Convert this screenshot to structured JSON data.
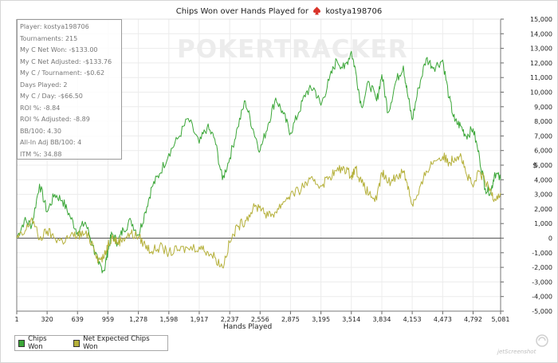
{
  "title": "Chips Won over Hands Played for",
  "player_name": "kostya198706",
  "icons": {
    "player": "poker-spade-icon",
    "corner": "jetscreenshot-logo-icon"
  },
  "stats": [
    "Player: kostya198706",
    "Tournaments: 215",
    "My C Net Won: -$133.00",
    "My C Net Adjusted: -$133.76",
    "My C / Tournament: -$0.62",
    "Days Played: 2",
    "My C / Day: -$66.50",
    "ROI %: -8.84",
    "ROI % Adjusted: -8.89",
    "BB/100: 4.30",
    "All-In Adj BB/100: 4",
    "ITM %: 34.88"
  ],
  "watermark": "POKERTRACKER",
  "corner_text": "jetScreenshot",
  "colors": {
    "chips_won": "#3aa637",
    "net_expected": "#b5b03a",
    "grid": "#ececec",
    "zero_line": "#555555"
  },
  "chart_data": {
    "type": "line",
    "title": "Chips Won over Hands Played for kostya198706",
    "xlabel": "Hands Played",
    "ylabel": "$",
    "xlim": [
      1,
      5081
    ],
    "ylim": [
      -5000,
      15000
    ],
    "x_ticks": [
      1,
      320,
      639,
      959,
      1278,
      1598,
      1917,
      2237,
      2556,
      2875,
      3195,
      3514,
      3834,
      4153,
      4473,
      4792,
      5081
    ],
    "x_tick_labels": [
      "1",
      "320",
      "639",
      "959",
      "1,278",
      "1,598",
      "1,917",
      "2,237",
      "2,556",
      "2,875",
      "3,195",
      "3,514",
      "3,834",
      "4,153",
      "4,473",
      "4,792",
      "5,081"
    ],
    "y_ticks": [
      -5000,
      -4000,
      -3000,
      -2000,
      -1000,
      0,
      1000,
      2000,
      3000,
      4000,
      5000,
      6000,
      7000,
      8000,
      9000,
      10000,
      11000,
      12000,
      13000,
      14000,
      15000
    ],
    "y_tick_labels": [
      "-5,000",
      "-4,000",
      "-3,000",
      "-2,000",
      "-1,000",
      "0",
      "1,000",
      "2,000",
      "3,000",
      "4,000",
      "5,000",
      "6,000",
      "7,000",
      "8,000",
      "9,000",
      "10,000",
      "11,000",
      "12,000",
      "13,000",
      "14,000",
      "15,000"
    ],
    "legend": "bottom-left",
    "series": [
      {
        "name": "Chips Won",
        "x": [
          1,
          80,
          160,
          240,
          320,
          400,
          480,
          560,
          640,
          720,
          800,
          860,
          920,
          959,
          1000,
          1060,
          1120,
          1200,
          1278,
          1350,
          1420,
          1500,
          1598,
          1700,
          1800,
          1917,
          2000,
          2080,
          2160,
          2237,
          2320,
          2400,
          2480,
          2556,
          2640,
          2720,
          2800,
          2875,
          2960,
          3040,
          3120,
          3195,
          3280,
          3360,
          3440,
          3514,
          3560,
          3620,
          3700,
          3780,
          3834,
          3900,
          3980,
          4060,
          4100,
          4153,
          4220,
          4300,
          4380,
          4473,
          4540,
          4600,
          4660,
          4720,
          4792,
          4860,
          4920,
          4980,
          5020,
          5081
        ],
        "values": [
          0,
          1200,
          900,
          3700,
          1800,
          3000,
          2600,
          1500,
          400,
          1100,
          -500,
          -1800,
          -2200,
          -800,
          300,
          -300,
          600,
          1200,
          200,
          1800,
          3500,
          4400,
          5800,
          6900,
          8200,
          6500,
          7600,
          6800,
          4000,
          5500,
          7600,
          9400,
          7500,
          6000,
          7800,
          9600,
          8500,
          7200,
          8600,
          10000,
          10300,
          9100,
          10800,
          12200,
          11600,
          12800,
          11400,
          9000,
          10700,
          9400,
          11200,
          8600,
          10700,
          11800,
          10000,
          8100,
          10300,
          12300,
          11700,
          12200,
          9600,
          8000,
          7700,
          7000,
          7500,
          5500,
          3400,
          3200,
          4500,
          4000
        ]
      },
      {
        "name": "Net Expected Chips Won",
        "x": [
          1,
          80,
          160,
          240,
          320,
          400,
          480,
          560,
          640,
          720,
          800,
          860,
          920,
          959,
          1000,
          1060,
          1120,
          1200,
          1278,
          1350,
          1420,
          1500,
          1598,
          1700,
          1800,
          1917,
          2000,
          2080,
          2160,
          2237,
          2320,
          2400,
          2480,
          2556,
          2640,
          2720,
          2800,
          2875,
          2960,
          3040,
          3120,
          3195,
          3280,
          3360,
          3440,
          3514,
          3560,
          3620,
          3700,
          3780,
          3834,
          3900,
          3980,
          4060,
          4100,
          4153,
          4220,
          4300,
          4380,
          4473,
          4540,
          4600,
          4660,
          4720,
          4792,
          4860,
          4920,
          4980,
          5020,
          5081
        ],
        "values": [
          0,
          300,
          1400,
          -100,
          500,
          0,
          -200,
          100,
          200,
          300,
          -400,
          -1500,
          -1300,
          -400,
          100,
          -300,
          0,
          300,
          100,
          -500,
          -900,
          -600,
          -1000,
          -800,
          -700,
          -600,
          -900,
          -1300,
          -2000,
          -300,
          800,
          1200,
          2000,
          2200,
          1500,
          1800,
          2500,
          3000,
          3200,
          3800,
          3900,
          3600,
          4200,
          4600,
          4800,
          4300,
          4800,
          3800,
          3000,
          2600,
          4500,
          3800,
          4200,
          4600,
          3800,
          2300,
          3000,
          4600,
          5300,
          5600,
          5200,
          5500,
          5800,
          4400,
          3500,
          4600,
          3800,
          3200,
          2700,
          3100
        ]
      }
    ]
  }
}
